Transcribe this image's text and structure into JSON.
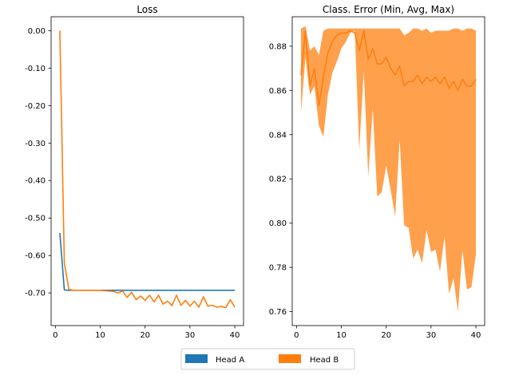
{
  "chart_data": [
    {
      "type": "line",
      "title": "Loss",
      "xlabel": "",
      "ylabel": "",
      "xlim": [
        -0.95,
        41.95
      ],
      "ylim": [
        -0.787,
        0.037
      ],
      "xticks": [
        0,
        10,
        20,
        30,
        40
      ],
      "yticks": [
        0.0,
        -0.1,
        -0.2,
        -0.3,
        -0.4,
        -0.5,
        -0.6,
        -0.7
      ],
      "ytick_labels": [
        "0.00",
        "-0.10",
        "-0.20",
        "-0.30",
        "-0.40",
        "-0.50",
        "-0.60",
        "-0.70"
      ],
      "grid": false,
      "series": [
        {
          "name": "Head A",
          "color": "#1f77b4",
          "x": [
            1,
            2,
            3,
            4,
            5,
            6,
            7,
            8,
            9,
            10,
            11,
            12,
            13,
            14,
            15,
            16,
            17,
            18,
            19,
            20,
            21,
            22,
            23,
            24,
            25,
            26,
            27,
            28,
            29,
            30,
            31,
            32,
            33,
            34,
            35,
            36,
            37,
            38,
            39,
            40
          ],
          "y": [
            -0.54,
            -0.692,
            -0.693,
            -0.693,
            -0.693,
            -0.693,
            -0.693,
            -0.693,
            -0.693,
            -0.693,
            -0.693,
            -0.693,
            -0.693,
            -0.693,
            -0.693,
            -0.693,
            -0.693,
            -0.693,
            -0.693,
            -0.693,
            -0.693,
            -0.693,
            -0.693,
            -0.693,
            -0.693,
            -0.693,
            -0.693,
            -0.693,
            -0.693,
            -0.693,
            -0.693,
            -0.693,
            -0.693,
            -0.693,
            -0.693,
            -0.693,
            -0.693,
            -0.693,
            -0.693,
            -0.693
          ]
        },
        {
          "name": "Head B",
          "color": "#ff7f0e",
          "x": [
            1,
            2,
            3,
            4,
            5,
            6,
            7,
            8,
            9,
            10,
            11,
            12,
            13,
            14,
            15,
            16,
            17,
            18,
            19,
            20,
            21,
            22,
            23,
            24,
            25,
            26,
            27,
            28,
            29,
            30,
            31,
            32,
            33,
            34,
            35,
            36,
            37,
            38,
            39,
            40
          ],
          "y": [
            0.0,
            -0.62,
            -0.69,
            -0.693,
            -0.693,
            -0.693,
            -0.693,
            -0.693,
            -0.693,
            -0.693,
            -0.694,
            -0.695,
            -0.696,
            -0.7,
            -0.695,
            -0.712,
            -0.698,
            -0.718,
            -0.708,
            -0.72,
            -0.706,
            -0.724,
            -0.706,
            -0.73,
            -0.722,
            -0.734,
            -0.706,
            -0.733,
            -0.72,
            -0.735,
            -0.722,
            -0.738,
            -0.71,
            -0.735,
            -0.733,
            -0.738,
            -0.736,
            -0.739,
            -0.718,
            -0.738
          ]
        }
      ]
    },
    {
      "type": "area",
      "title": "Class. Error (Min, Avg, Max)",
      "xlabel": "",
      "ylabel": "",
      "xlim": [
        -0.95,
        41.95
      ],
      "ylim": [
        0.7537,
        0.8933
      ],
      "xticks": [
        0,
        10,
        20,
        30,
        40
      ],
      "yticks": [
        0.76,
        0.78,
        0.8,
        0.82,
        0.84,
        0.86,
        0.88
      ],
      "ytick_labels": [
        "0.76",
        "0.78",
        "0.80",
        "0.82",
        "0.84",
        "0.86",
        "0.88"
      ],
      "grid": false,
      "series": [
        {
          "name": "Head B",
          "color": "#ff7f0e",
          "fill_color": "#ffa04d",
          "x": [
            1,
            2,
            3,
            4,
            5,
            6,
            7,
            8,
            9,
            10,
            11,
            12,
            13,
            14,
            15,
            16,
            17,
            18,
            19,
            20,
            21,
            22,
            23,
            24,
            25,
            26,
            27,
            28,
            29,
            30,
            31,
            32,
            33,
            34,
            35,
            36,
            37,
            38,
            39,
            40
          ],
          "min": [
            0.85,
            0.875,
            0.858,
            0.862,
            0.844,
            0.839,
            0.858,
            0.868,
            0.873,
            0.879,
            0.882,
            0.886,
            0.887,
            0.833,
            0.869,
            0.821,
            0.852,
            0.812,
            0.814,
            0.826,
            0.815,
            0.803,
            0.838,
            0.799,
            0.798,
            0.784,
            0.788,
            0.782,
            0.797,
            0.787,
            0.788,
            0.778,
            0.794,
            0.768,
            0.775,
            0.76,
            0.788,
            0.77,
            0.771,
            0.786
          ],
          "avg": [
            0.867,
            0.887,
            0.862,
            0.87,
            0.853,
            0.866,
            0.877,
            0.882,
            0.885,
            0.886,
            0.886,
            0.887,
            0.886,
            0.878,
            0.887,
            0.874,
            0.879,
            0.872,
            0.872,
            0.875,
            0.87,
            0.867,
            0.871,
            0.862,
            0.864,
            0.864,
            0.867,
            0.863,
            0.866,
            0.864,
            0.866,
            0.863,
            0.866,
            0.861,
            0.864,
            0.86,
            0.865,
            0.862,
            0.862,
            0.865
          ],
          "max": [
            0.888,
            0.889,
            0.878,
            0.88,
            0.876,
            0.887,
            0.888,
            0.888,
            0.888,
            0.888,
            0.888,
            0.888,
            0.888,
            0.888,
            0.888,
            0.888,
            0.888,
            0.888,
            0.888,
            0.888,
            0.888,
            0.888,
            0.888,
            0.885,
            0.886,
            0.888,
            0.888,
            0.887,
            0.888,
            0.886,
            0.887,
            0.887,
            0.887,
            0.887,
            0.888,
            0.888,
            0.887,
            0.888,
            0.888,
            0.887
          ]
        }
      ]
    }
  ],
  "legend": {
    "placement": "bottom-center",
    "items": [
      {
        "label": "Head A",
        "color": "#1f77b4"
      },
      {
        "label": "Head B",
        "color": "#ff7f0e"
      }
    ]
  }
}
